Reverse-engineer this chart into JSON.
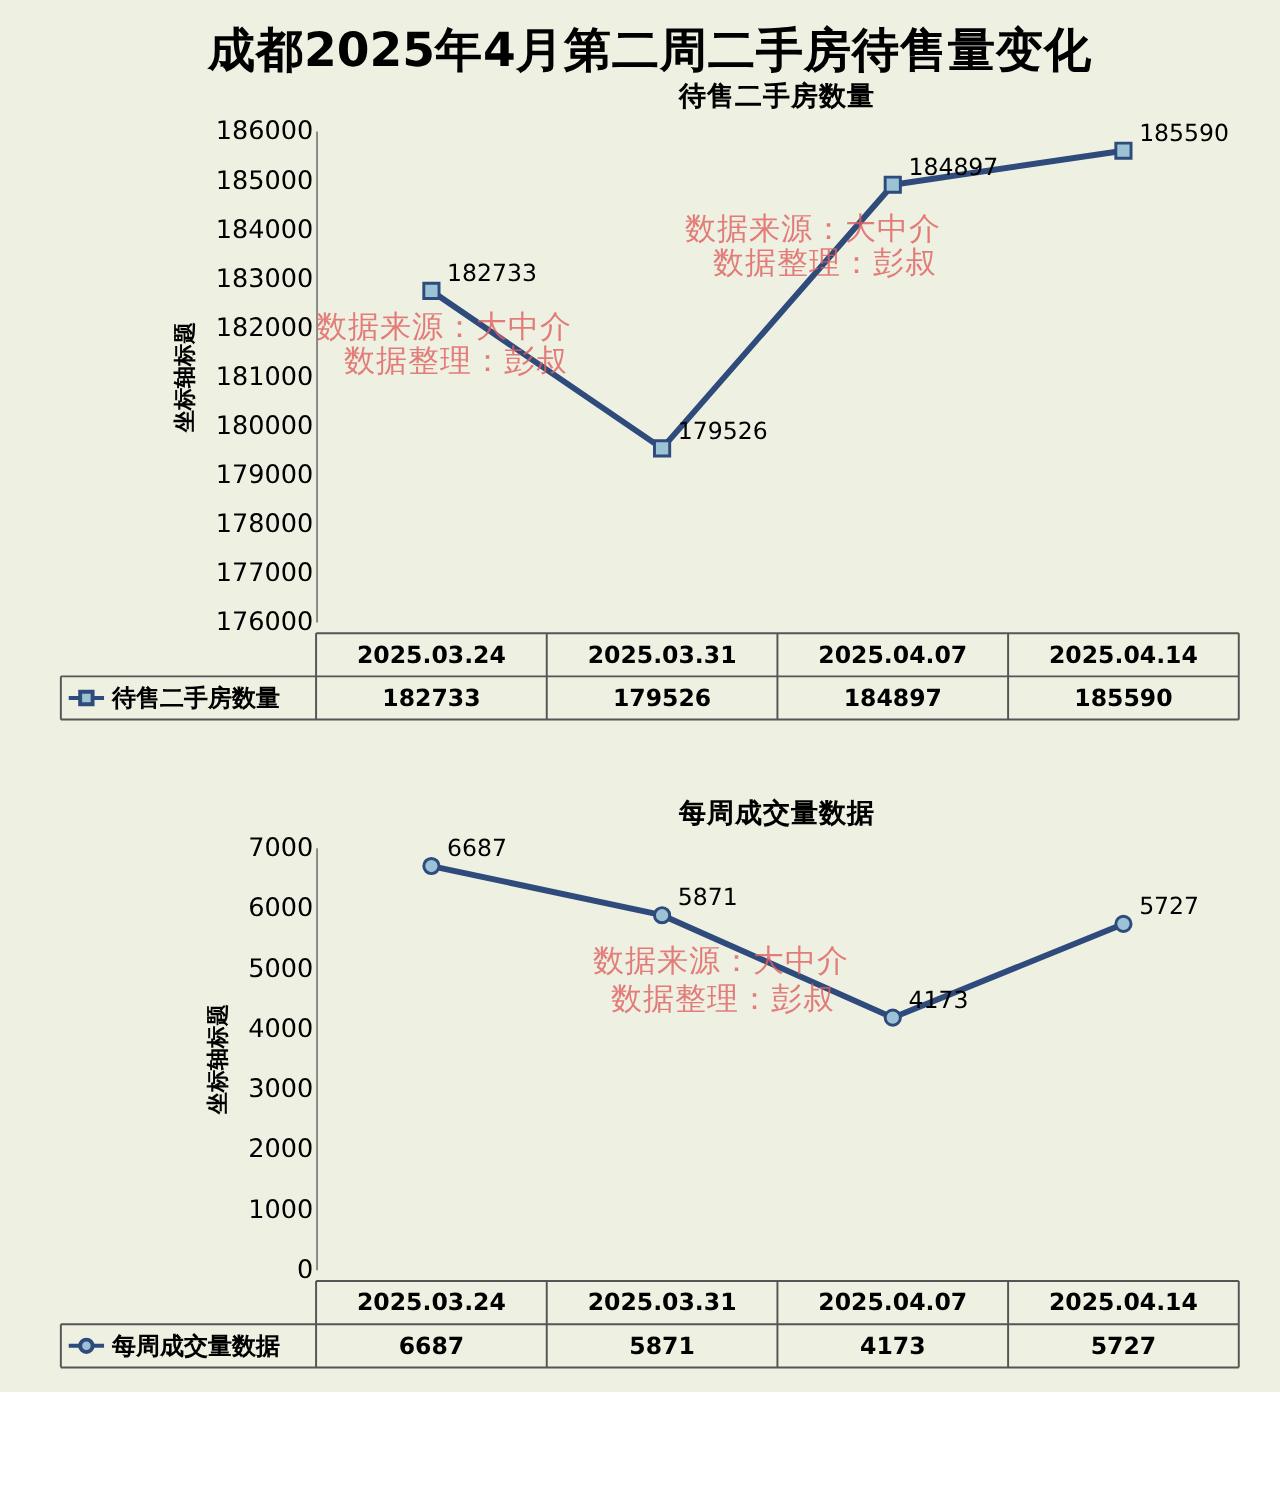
{
  "chart_data": [
    {
      "type": "line",
      "title": "成都2025年4月第二周二手房待售量变化",
      "subtitle": "待售二手房数量",
      "ylabel": "坐标轴标题",
      "categories": [
        "2025.03.24",
        "2025.03.31",
        "2025.04.07",
        "2025.04.14"
      ],
      "series": [
        {
          "name": "待售二手房数量",
          "color": "#2f4b7c",
          "values": [
            182733,
            179526,
            184897,
            185590
          ],
          "value_labels": [
            "182733",
            "179526",
            "184897",
            "185590"
          ]
        }
      ],
      "ylim": [
        176000,
        186000
      ],
      "yticks": [
        176000,
        177000,
        178000,
        179000,
        180000,
        181000,
        182000,
        183000,
        184000,
        185000,
        186000
      ],
      "marker": "square",
      "data_labels": true,
      "grid": false,
      "annotations": [
        "数据来源：大中介",
        "数据整理：彭叔",
        "数据来源：大中介",
        "数据整理：彭叔"
      ]
    },
    {
      "type": "line",
      "subtitle": "每周成交量数据",
      "ylabel": "坐标轴标题",
      "categories": [
        "2025.03.24",
        "2025.03.31",
        "2025.04.07",
        "2025.04.14"
      ],
      "series": [
        {
          "name": "每周成交量数据",
          "color": "#2f4b7c",
          "values": [
            6687,
            5871,
            4173,
            5727
          ],
          "value_labels": [
            "6687",
            "5871",
            "4173",
            "5727"
          ]
        }
      ],
      "ylim": [
        0,
        7000
      ],
      "yticks": [
        0,
        1000,
        2000,
        3000,
        4000,
        5000,
        6000,
        7000
      ],
      "marker": "circle",
      "data_labels": true,
      "grid": false,
      "annotations": [
        "数据来源：大中介",
        "数据整理：彭叔"
      ]
    }
  ]
}
